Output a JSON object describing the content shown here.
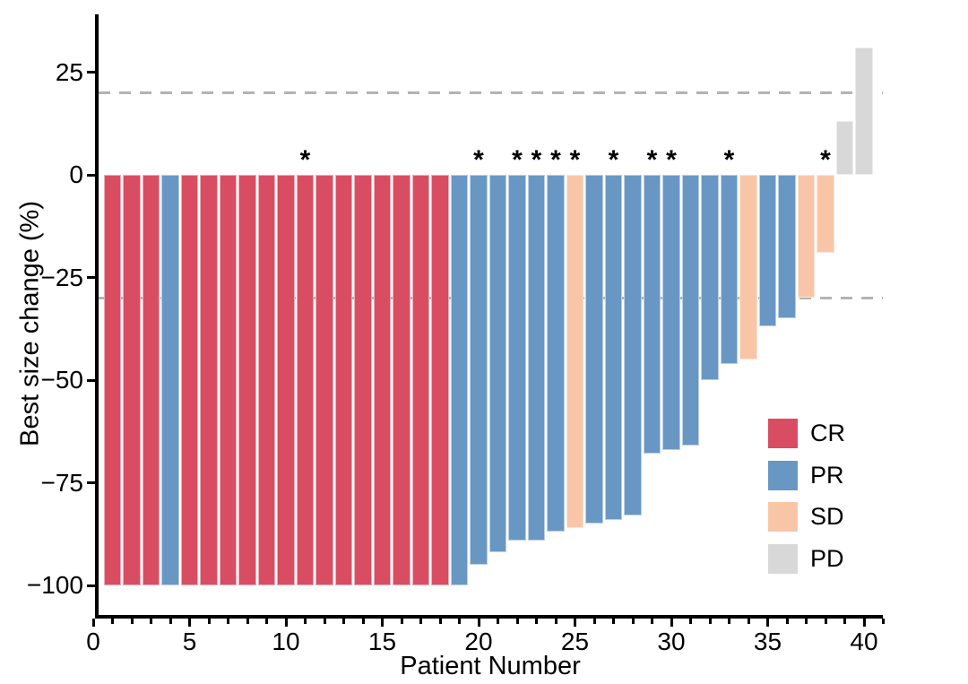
{
  "chart_data": {
    "type": "bar",
    "subtype": "waterfall",
    "title": "",
    "xlabel": "Patient Number",
    "ylabel": "Best size change (%)",
    "xlim": [
      0,
      41.5
    ],
    "ylim": [
      -108,
      38
    ],
    "grid": false,
    "legend_position": "inside-right",
    "annotation_symbol": "*",
    "annotated_patients": [
      11,
      20,
      22,
      23,
      24,
      25,
      27,
      29,
      30,
      33,
      38
    ],
    "reference_lines": [
      {
        "y": 20,
        "style": "dashed",
        "color": "#b3b3b3"
      },
      {
        "y": -30,
        "style": "dashed",
        "color": "#b3b3b3"
      }
    ],
    "colors": {
      "CR": "#d94d62",
      "PR": "#6997c4",
      "SD": "#f8c6a7",
      "PD": "#d8d8d8"
    },
    "legend": [
      {
        "label": "CR",
        "color": "#d94d62"
      },
      {
        "label": "PR",
        "color": "#6997c4"
      },
      {
        "label": "SD",
        "color": "#f8c6a7"
      },
      {
        "label": "PD",
        "color": "#d8d8d8"
      }
    ],
    "y_ticks": [
      {
        "value": 25,
        "label": "25"
      },
      {
        "value": 0,
        "label": "0"
      },
      {
        "value": -25,
        "label": "−25"
      },
      {
        "value": -50,
        "label": "−50"
      },
      {
        "value": -75,
        "label": "−75"
      },
      {
        "value": -100,
        "label": "−100"
      }
    ],
    "x_ticks": [
      {
        "value": 0,
        "label": "0"
      },
      {
        "value": 5,
        "label": "5"
      },
      {
        "value": 10,
        "label": "10"
      },
      {
        "value": 15,
        "label": "15"
      },
      {
        "value": 20,
        "label": "20"
      },
      {
        "value": 25,
        "label": "25"
      },
      {
        "value": 30,
        "label": "30"
      },
      {
        "value": 35,
        "label": "35"
      },
      {
        "value": 40,
        "label": "40"
      }
    ],
    "x_minor_tick_min": 0,
    "x_minor_tick_max": 41,
    "patients": [
      {
        "n": 1,
        "value": -100,
        "response": "CR",
        "asterisk": false
      },
      {
        "n": 2,
        "value": -100,
        "response": "CR",
        "asterisk": false
      },
      {
        "n": 3,
        "value": -100,
        "response": "CR",
        "asterisk": false
      },
      {
        "n": 4,
        "value": -100,
        "response": "PR",
        "asterisk": false
      },
      {
        "n": 5,
        "value": -100,
        "response": "CR",
        "asterisk": false
      },
      {
        "n": 6,
        "value": -100,
        "response": "CR",
        "asterisk": false
      },
      {
        "n": 7,
        "value": -100,
        "response": "CR",
        "asterisk": false
      },
      {
        "n": 8,
        "value": -100,
        "response": "CR",
        "asterisk": false
      },
      {
        "n": 9,
        "value": -100,
        "response": "CR",
        "asterisk": false
      },
      {
        "n": 10,
        "value": -100,
        "response": "CR",
        "asterisk": false
      },
      {
        "n": 11,
        "value": -100,
        "response": "CR",
        "asterisk": true
      },
      {
        "n": 12,
        "value": -100,
        "response": "CR",
        "asterisk": false
      },
      {
        "n": 13,
        "value": -100,
        "response": "CR",
        "asterisk": false
      },
      {
        "n": 14,
        "value": -100,
        "response": "CR",
        "asterisk": false
      },
      {
        "n": 15,
        "value": -100,
        "response": "CR",
        "asterisk": false
      },
      {
        "n": 16,
        "value": -100,
        "response": "CR",
        "asterisk": false
      },
      {
        "n": 17,
        "value": -100,
        "response": "CR",
        "asterisk": false
      },
      {
        "n": 18,
        "value": -100,
        "response": "CR",
        "asterisk": false
      },
      {
        "n": 19,
        "value": -100,
        "response": "PR",
        "asterisk": false
      },
      {
        "n": 20,
        "value": -95,
        "response": "PR",
        "asterisk": true
      },
      {
        "n": 21,
        "value": -92,
        "response": "PR",
        "asterisk": false
      },
      {
        "n": 22,
        "value": -89,
        "response": "PR",
        "asterisk": true
      },
      {
        "n": 23,
        "value": -89,
        "response": "PR",
        "asterisk": true
      },
      {
        "n": 24,
        "value": -87,
        "response": "PR",
        "asterisk": true
      },
      {
        "n": 25,
        "value": -86,
        "response": "SD",
        "asterisk": true
      },
      {
        "n": 26,
        "value": -85,
        "response": "PR",
        "asterisk": false
      },
      {
        "n": 27,
        "value": -84,
        "response": "PR",
        "asterisk": true
      },
      {
        "n": 28,
        "value": -83,
        "response": "PR",
        "asterisk": false
      },
      {
        "n": 29,
        "value": -68,
        "response": "PR",
        "asterisk": true
      },
      {
        "n": 30,
        "value": -67,
        "response": "PR",
        "asterisk": true
      },
      {
        "n": 31,
        "value": -66,
        "response": "PR",
        "asterisk": false
      },
      {
        "n": 32,
        "value": -50,
        "response": "PR",
        "asterisk": false
      },
      {
        "n": 33,
        "value": -46,
        "response": "PR",
        "asterisk": true
      },
      {
        "n": 34,
        "value": -45,
        "response": "SD",
        "asterisk": false
      },
      {
        "n": 35,
        "value": -37,
        "response": "PR",
        "asterisk": false
      },
      {
        "n": 36,
        "value": -35,
        "response": "PR",
        "asterisk": false
      },
      {
        "n": 37,
        "value": -30,
        "response": "SD",
        "asterisk": false
      },
      {
        "n": 38,
        "value": -19,
        "response": "SD",
        "asterisk": true
      },
      {
        "n": 39,
        "value": 13,
        "response": "PD",
        "asterisk": false
      },
      {
        "n": 40,
        "value": 31,
        "response": "PD",
        "asterisk": false
      }
    ]
  }
}
